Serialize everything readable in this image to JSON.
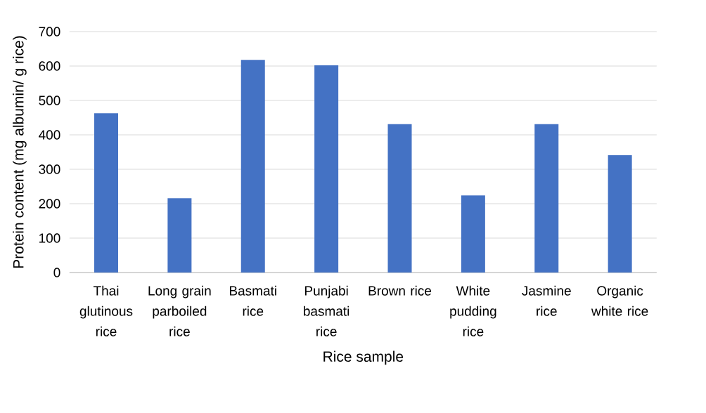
{
  "chart_data": {
    "type": "bar",
    "xlabel": "Rice sample",
    "ylabel": "Protein content (mg albumin/ g rice)",
    "categories": [
      "Thai glutinous rice",
      "Long grain parboiled rice",
      "Basmati rice",
      "Punjabi basmati rice",
      "Brown rice",
      "White pudding rice",
      "Jasmine rice",
      "Organic white rice"
    ],
    "values": [
      463,
      216,
      618,
      602,
      431,
      224,
      431,
      341
    ],
    "color": "#4472c4",
    "ylim": [
      0,
      700
    ],
    "yticks": [
      0,
      100,
      200,
      300,
      400,
      500,
      600,
      700
    ],
    "grid": "y"
  }
}
